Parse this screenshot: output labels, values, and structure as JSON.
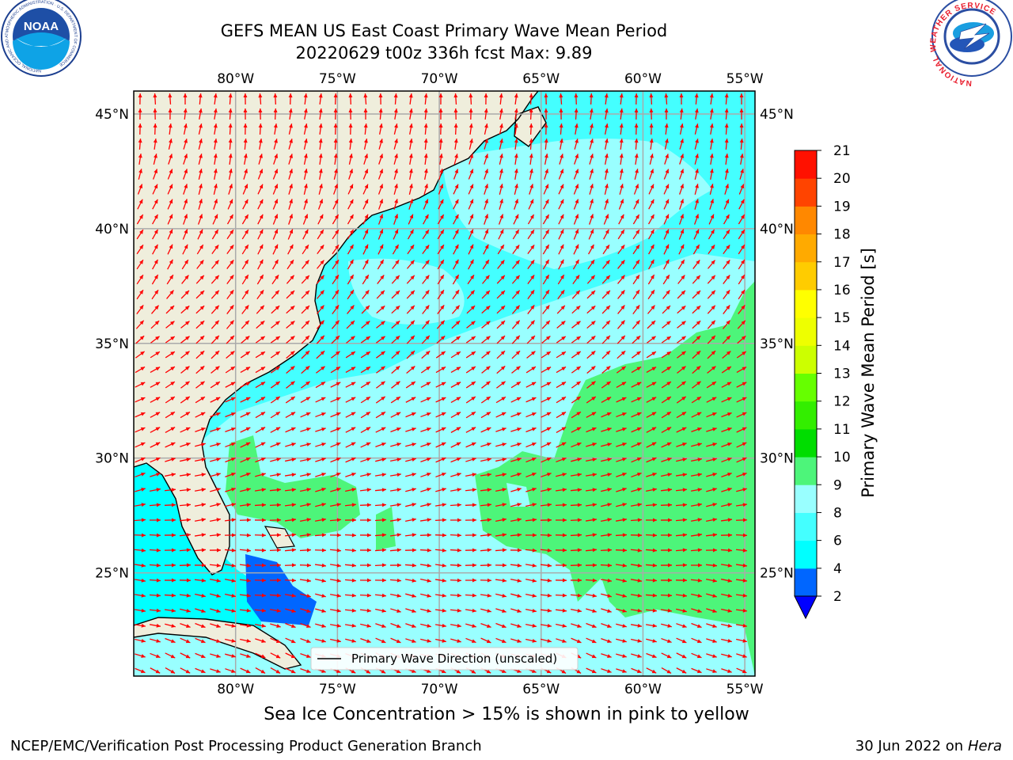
{
  "title": {
    "line1": "GEFS MEAN US East Coast Primary Wave Mean Period",
    "line2": "20220629 t00z 336h fcst   Max: 9.89"
  },
  "subtitle": "Sea Ice Concentration > 15% is shown in pink to yellow",
  "footer": {
    "left": "NCEP/EMC/Verification Post Processing Product Generation Branch",
    "date": "30 Jun 2022 on",
    "machine": "Hera"
  },
  "logos": {
    "left_name": "NOAA",
    "left_ring_text": "NATIONAL OCEANIC AND ATMOSPHERIC ADMINISTRATION · U.S. DEPARTMENT OF COMMERCE",
    "right_ring_text": "NATIONAL WEATHER SERVICE"
  },
  "map": {
    "lon_ticks": [
      "80°W",
      "75°W",
      "70°W",
      "65°W",
      "60°W",
      "55°W"
    ],
    "lat_ticks": [
      "45°N",
      "40°N",
      "35°N",
      "30°N",
      "25°N"
    ],
    "lon_values": [
      -80,
      -75,
      -70,
      -65,
      -60,
      -55
    ],
    "lat_values": [
      45,
      40,
      35,
      30,
      25
    ],
    "extent": {
      "lon": [
        -85,
        -54.5
      ],
      "lat": [
        20.5,
        46
      ]
    },
    "legend_label": "Primary Wave Direction (unscaled)",
    "land_color": "#efeedc",
    "arrow_color": "#ff0000"
  },
  "colorbar": {
    "label": "Primary Wave Mean Period [s]",
    "ticks": [
      "2",
      "4",
      "6",
      "8",
      "9",
      "10",
      "11",
      "12",
      "13",
      "14",
      "15",
      "16",
      "17",
      "18",
      "19",
      "20",
      "21"
    ],
    "colors": [
      "#0066ff",
      "#00ffff",
      "#44ffff",
      "#99ffff",
      "#4df57a",
      "#00dd00",
      "#33ee00",
      "#66ff00",
      "#ccff00",
      "#eeff00",
      "#ffff00",
      "#ffcc00",
      "#ffaa00",
      "#ff8800",
      "#ff4400",
      "#ff1100"
    ],
    "extend_color": "#0000ff"
  }
}
